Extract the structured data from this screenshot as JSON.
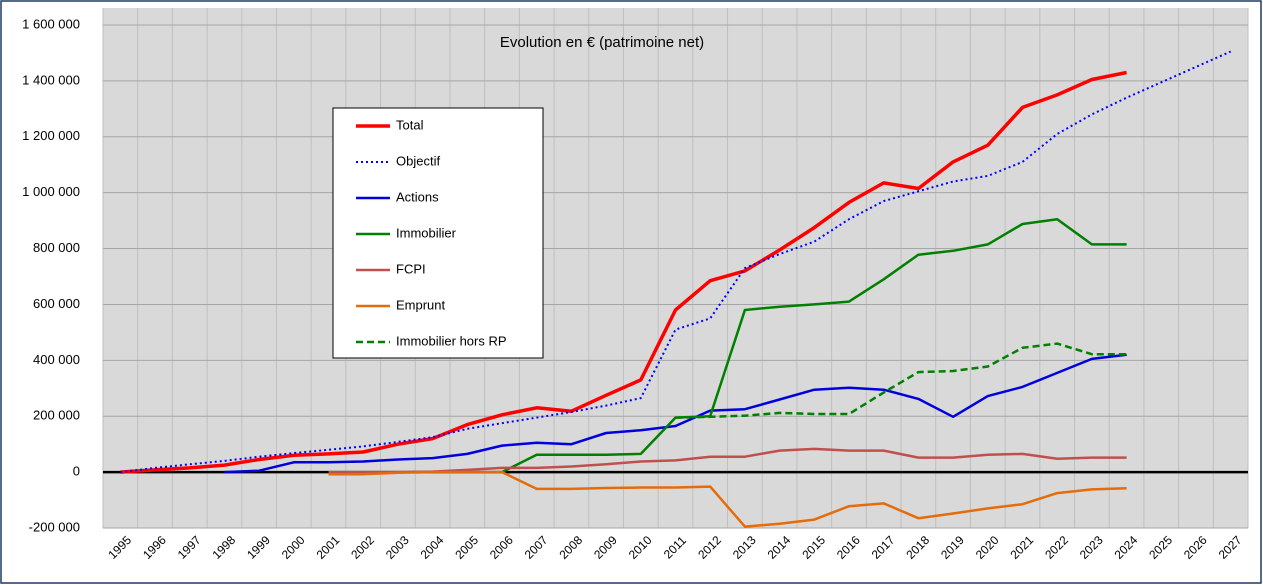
{
  "chart_data": {
    "type": "line",
    "title": "Evolution en € (patrimoine net)",
    "categories": [
      "1995",
      "1996",
      "1997",
      "1998",
      "1999",
      "2000",
      "2001",
      "2002",
      "2003",
      "2004",
      "2005",
      "2006",
      "2007",
      "2008",
      "2009",
      "2010",
      "2011",
      "2012",
      "2013",
      "2014",
      "2015",
      "2016",
      "2017",
      "2018",
      "2019",
      "2020",
      "2021",
      "2022",
      "2023",
      "2024",
      "2025",
      "2026",
      "2027"
    ],
    "series": [
      {
        "name": "Total",
        "color": "#ff0000",
        "style": "solid",
        "line_width": 3.5,
        "values": [
          0,
          8000,
          15000,
          25000,
          45000,
          60000,
          65000,
          72000,
          100000,
          120000,
          170000,
          205000,
          230000,
          218000,
          275000,
          330000,
          580000,
          685000,
          720000,
          795000,
          875000,
          965000,
          1035000,
          1015000,
          1110000,
          1170000,
          1305000,
          1350000,
          1405000,
          1430000,
          null,
          null,
          null
        ]
      },
      {
        "name": "Objectif",
        "color": "#0000ff",
        "style": "dotted",
        "line_width": 2,
        "values": [
          0,
          15000,
          28000,
          40000,
          55000,
          68000,
          80000,
          92000,
          108000,
          125000,
          155000,
          175000,
          195000,
          215000,
          238000,
          265000,
          510000,
          550000,
          730000,
          780000,
          825000,
          905000,
          970000,
          1005000,
          1040000,
          1060000,
          1110000,
          1210000,
          1280000,
          1340000,
          1395000,
          1450000,
          1505000
        ]
      },
      {
        "name": "Actions",
        "color": "#0000dd",
        "style": "solid",
        "line_width": 2.5,
        "values": [
          null,
          null,
          null,
          0,
          5000,
          35000,
          35000,
          38000,
          45000,
          50000,
          65000,
          95000,
          105000,
          100000,
          140000,
          150000,
          165000,
          220000,
          225000,
          260000,
          295000,
          302000,
          295000,
          262000,
          198000,
          272000,
          305000,
          355000,
          405000,
          420000,
          null,
          null,
          null
        ]
      },
      {
        "name": "Immobilier",
        "color": "#008000",
        "style": "solid",
        "line_width": 2.5,
        "values": [
          null,
          null,
          null,
          null,
          null,
          null,
          null,
          null,
          null,
          null,
          null,
          0,
          62000,
          62000,
          62000,
          65000,
          195000,
          200000,
          580000,
          592000,
          600000,
          610000,
          690000,
          778000,
          792000,
          815000,
          888000,
          905000,
          815000,
          815000,
          null,
          null,
          null
        ]
      },
      {
        "name": "FCPI",
        "color": "#c0504d",
        "style": "solid",
        "line_width": 2.5,
        "values": [
          null,
          null,
          null,
          null,
          null,
          null,
          0,
          0,
          0,
          2000,
          8000,
          15000,
          15000,
          20000,
          28000,
          38000,
          42000,
          55000,
          55000,
          77000,
          83000,
          77000,
          77000,
          52000,
          52000,
          62000,
          65000,
          48000,
          52000,
          52000,
          null,
          null,
          null
        ]
      },
      {
        "name": "Emprunt",
        "color": "#e46c0a",
        "style": "solid",
        "line_width": 2.5,
        "values": [
          null,
          null,
          null,
          null,
          null,
          null,
          -8000,
          -8000,
          -2000,
          0,
          0,
          0,
          -60000,
          -60000,
          -57000,
          -55000,
          -55000,
          -52000,
          -195000,
          -185000,
          -170000,
          -122000,
          -112000,
          -165000,
          -148000,
          -130000,
          -115000,
          -75000,
          -62000,
          -58000,
          null,
          null,
          null
        ]
      },
      {
        "name": "Immobilier hors RP",
        "color": "#008000",
        "style": "dashed",
        "line_width": 2.5,
        "values": [
          null,
          null,
          null,
          null,
          null,
          null,
          null,
          null,
          null,
          null,
          null,
          null,
          null,
          null,
          null,
          null,
          195000,
          198000,
          202000,
          212000,
          208000,
          208000,
          285000,
          358000,
          362000,
          378000,
          445000,
          460000,
          422000,
          422000,
          null,
          null,
          null
        ]
      }
    ],
    "ylim": [
      -200000,
      1600000
    ],
    "yticks": [
      {
        "value": -200000,
        "label": "-200 000"
      },
      0,
      {
        "value": 200000,
        "label": "200 000"
      },
      {
        "value": 400000,
        "label": "400 000"
      },
      {
        "value": 600000,
        "label": "600 000"
      },
      {
        "value": 800000,
        "label": "800 000"
      },
      {
        "value": 1000000,
        "label": "1 000 000"
      },
      {
        "value": 1200000,
        "label": "1 200 000"
      },
      {
        "value": 1400000,
        "label": "1 400 000"
      },
      {
        "value": 1600000,
        "label": "1 600 000"
      }
    ],
    "grid": true
  }
}
